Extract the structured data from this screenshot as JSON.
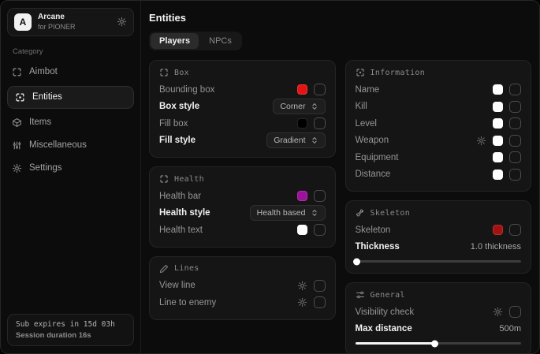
{
  "sidebar": {
    "brand": {
      "initial": "A",
      "title": "Arcane",
      "subtitle": "for PIONER"
    },
    "category_label": "Category",
    "items": [
      {
        "label": "Aimbot"
      },
      {
        "label": "Entities"
      },
      {
        "label": "Items"
      },
      {
        "label": "Miscellaneous"
      },
      {
        "label": "Settings"
      }
    ],
    "footer": {
      "line1": "Sub expires in 15d 03h",
      "line2": "Session duration 16s"
    }
  },
  "main": {
    "title": "Entities",
    "tabs": [
      {
        "label": "Players"
      },
      {
        "label": "NPCs"
      }
    ],
    "active_tab": "Players"
  },
  "cards": {
    "box": {
      "header": "Box",
      "rows": [
        {
          "label": "Bounding box",
          "swatch": "#e51414",
          "checked": false
        },
        {
          "label": "Box style",
          "value": "Corner"
        },
        {
          "label": "Fill box",
          "swatch": "#000000",
          "checked": false
        },
        {
          "label": "Fill style",
          "value": "Gradient"
        }
      ]
    },
    "health": {
      "header": "Health",
      "rows": [
        {
          "label": "Health bar",
          "swatch": "#9c129c",
          "checked": false
        },
        {
          "label": "Health style",
          "value": "Health based"
        },
        {
          "label": "Health text",
          "swatch": "#ffffff",
          "checked": false
        }
      ]
    },
    "lines": {
      "header": "Lines",
      "rows": [
        {
          "label": "View line",
          "checked": false
        },
        {
          "label": "Line to enemy",
          "checked": false
        }
      ]
    },
    "information": {
      "header": "Information",
      "rows": [
        {
          "label": "Name",
          "swatch": "#ffffff",
          "checked": false
        },
        {
          "label": "Kill",
          "swatch": "#ffffff",
          "checked": false
        },
        {
          "label": "Level",
          "swatch": "#ffffff",
          "checked": false
        },
        {
          "label": "Weapon",
          "swatch": "#ffffff",
          "checked": false,
          "has_gear": true
        },
        {
          "label": "Equipment",
          "swatch": "#ffffff",
          "checked": false
        },
        {
          "label": "Distance",
          "swatch": "#ffffff",
          "checked": false
        }
      ]
    },
    "skeleton": {
      "header": "Skeleton",
      "rows": [
        {
          "label": "Skeleton",
          "swatch": "#a31111",
          "checked": false
        }
      ],
      "slider": {
        "label": "Thickness",
        "value": "1.0 thickness",
        "percent": 1
      }
    },
    "general": {
      "header": "General",
      "rows": [
        {
          "label": "Visibility check",
          "checked": false
        }
      ],
      "slider": {
        "label": "Max distance",
        "value": "500m",
        "percent": 48
      }
    }
  },
  "colors": {
    "accent_red": "#e51414",
    "accent_purple": "#9c129c",
    "skeleton_red": "#a31111",
    "card_bg": "#151515",
    "page_bg": "#0c0c0c"
  }
}
